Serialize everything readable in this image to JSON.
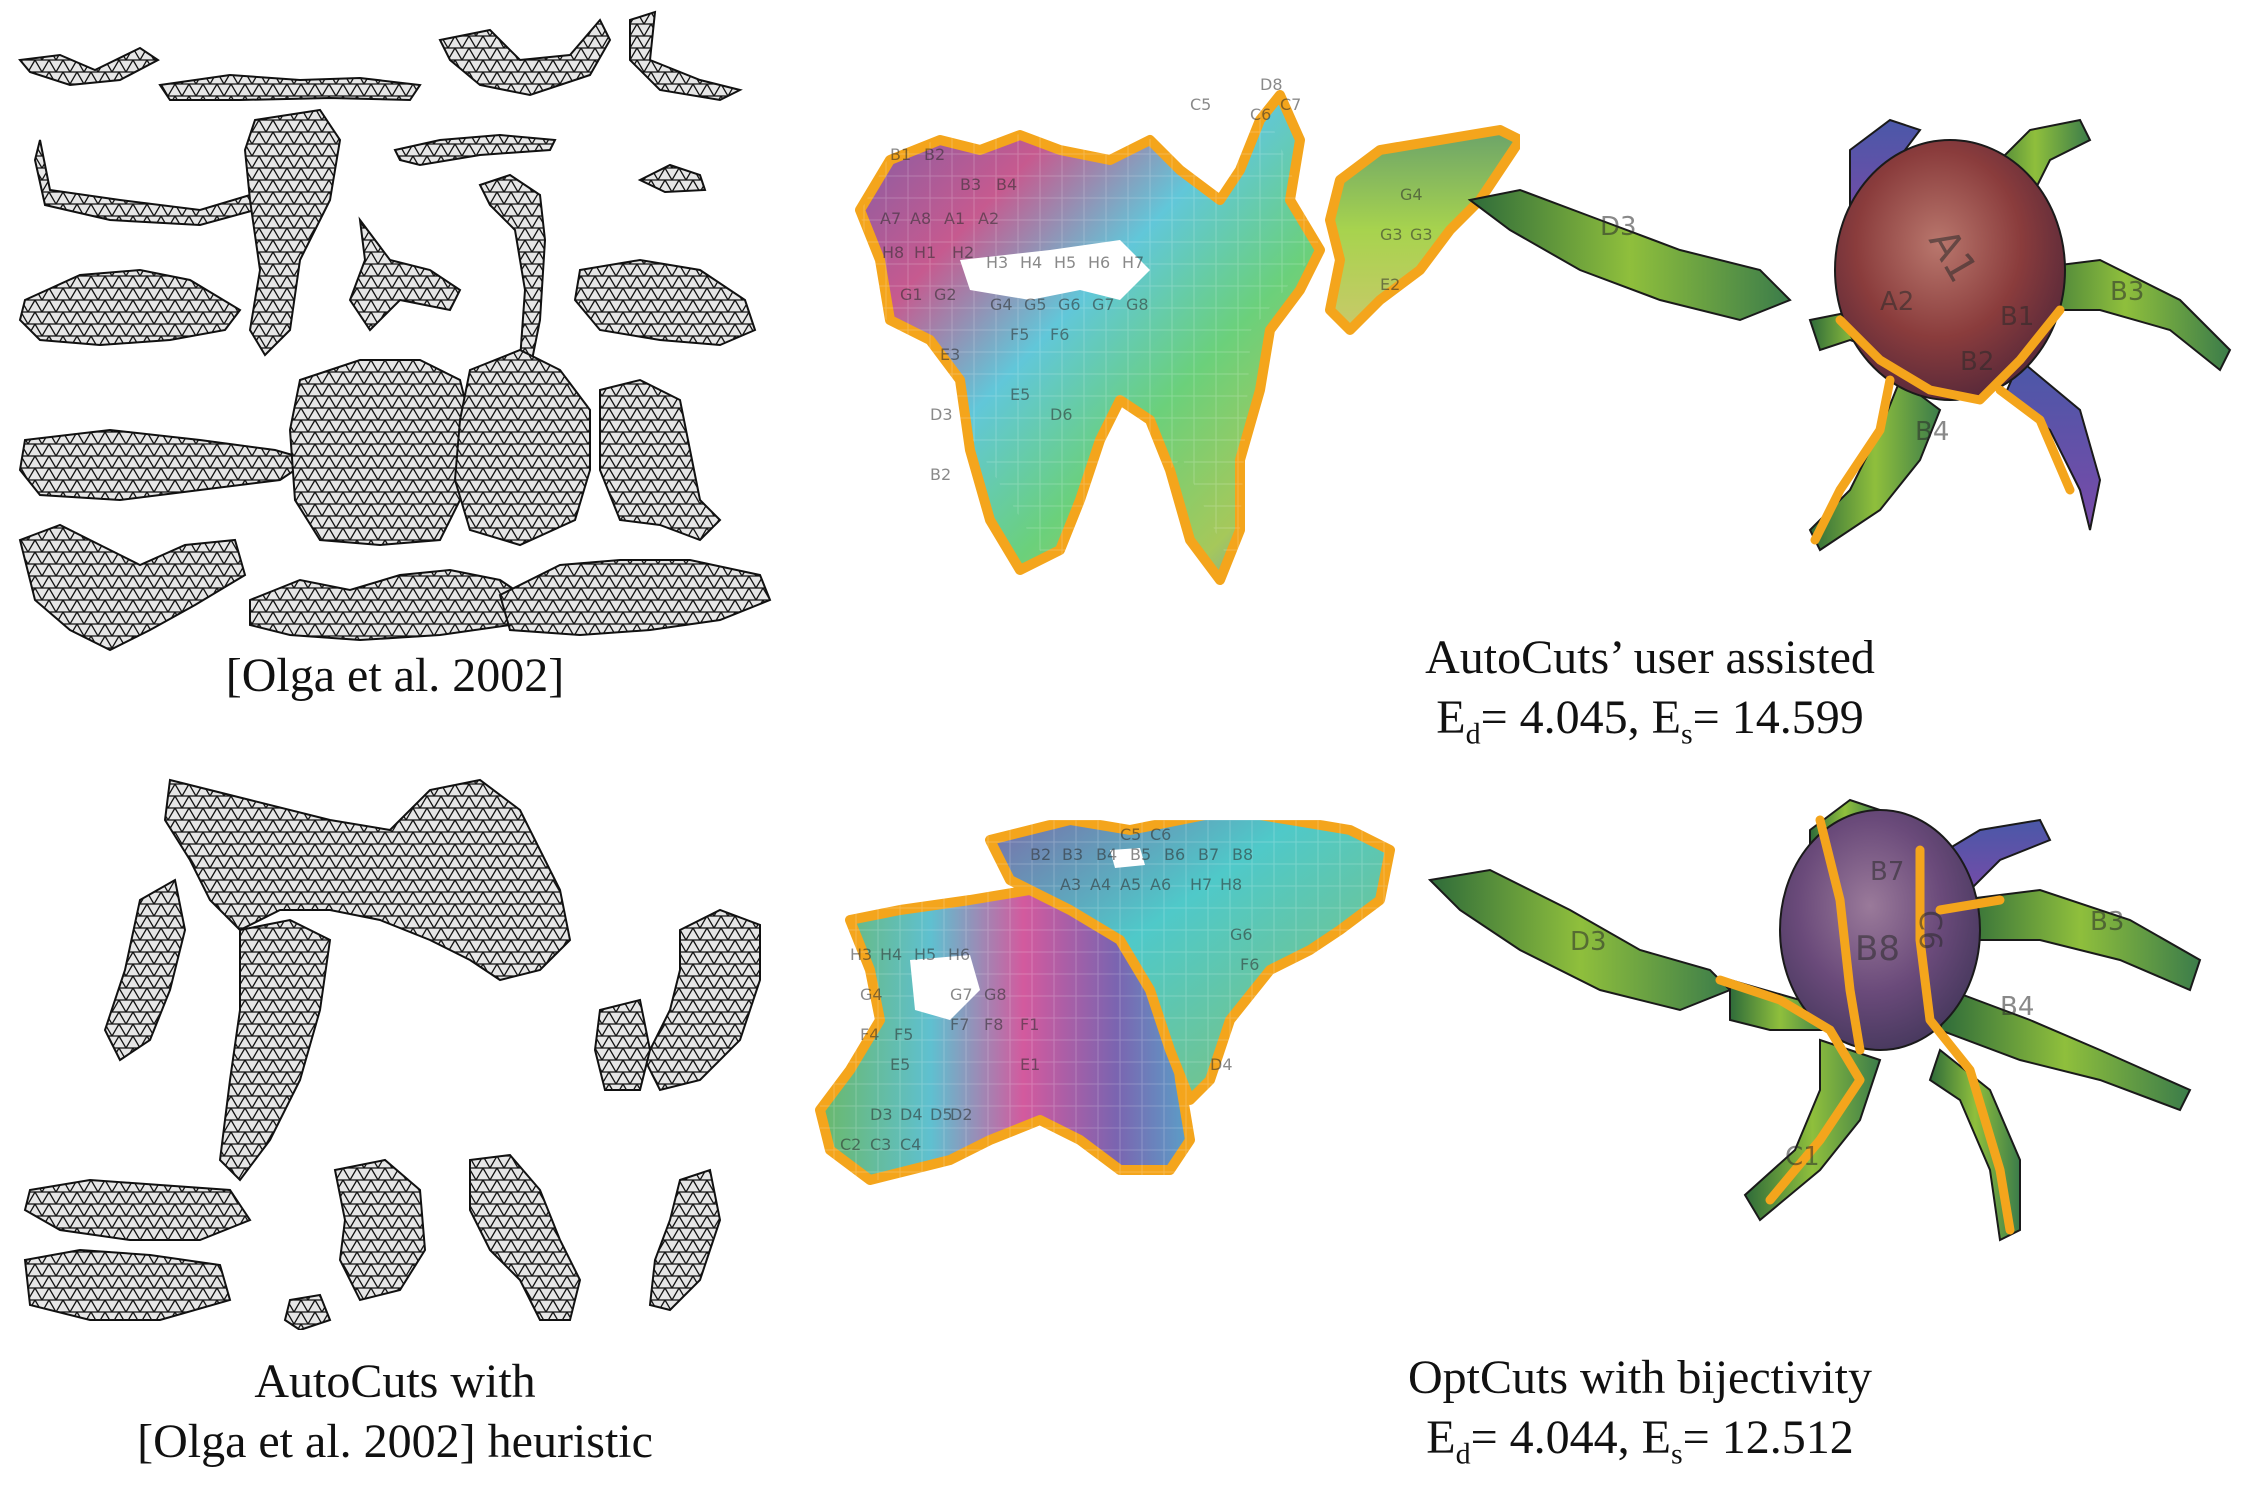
{
  "figure": {
    "panels": [
      {
        "id": "olga-2002",
        "caption_lines": [
          "[Olga et al. 2002]"
        ]
      },
      {
        "id": "autocuts-user-assisted",
        "caption_title": "AutoCuts’ user assisted",
        "metrics": {
          "ed_label": "E",
          "ed_sub": "d",
          "ed_value": "= 4.045, ",
          "es_label": "E",
          "es_sub": "s",
          "es_value": "= 14.599"
        }
      },
      {
        "id": "autocuts-heuristic",
        "caption_lines": [
          "AutoCuts with",
          "[Olga et al. 2002] heuristic"
        ]
      },
      {
        "id": "optcuts-bijectivity",
        "caption_title": "OptCuts with bijectivity",
        "metrics": {
          "ed_label": "E",
          "ed_sub": "d",
          "ed_value": "= 4.044, ",
          "es_label": "E",
          "es_sub": "s",
          "es_value": "= 12.512"
        }
      }
    ],
    "uv_labels_top": [
      "B1",
      "B2",
      "B3",
      "B4",
      "A7",
      "A8",
      "A1",
      "A2",
      "H8",
      "H1",
      "H2",
      "H3",
      "H4",
      "H5",
      "H6",
      "H7",
      "G1",
      "G2",
      "G4",
      "G5",
      "G6",
      "G7",
      "G8",
      "E3",
      "F5",
      "F6",
      "D3",
      "E5",
      "D6",
      "B2",
      "C5",
      "C6",
      "C7",
      "D8",
      "G3",
      "G3",
      "G4",
      "E2"
    ],
    "uv_labels_bottom": [
      "B2",
      "B3",
      "B4",
      "B5",
      "B6",
      "B7",
      "B8",
      "C5",
      "C6",
      "A3",
      "A4",
      "A5",
      "A6",
      "H7",
      "H8",
      "H3",
      "H4",
      "H5",
      "H6",
      "G4",
      "G7",
      "G8",
      "F4",
      "F5",
      "F7",
      "F8",
      "F1",
      "E5",
      "E1",
      "D2",
      "D3",
      "D4",
      "D5",
      "C2",
      "C3",
      "C4",
      "G6",
      "F6",
      "D4"
    ],
    "model_labels_top": [
      "A1",
      "A2",
      "B1",
      "B2",
      "B3",
      "B4",
      "D3"
    ],
    "model_labels_bottom": [
      "B8",
      "C6",
      "B7",
      "B3",
      "B4",
      "D3",
      "C1"
    ]
  }
}
